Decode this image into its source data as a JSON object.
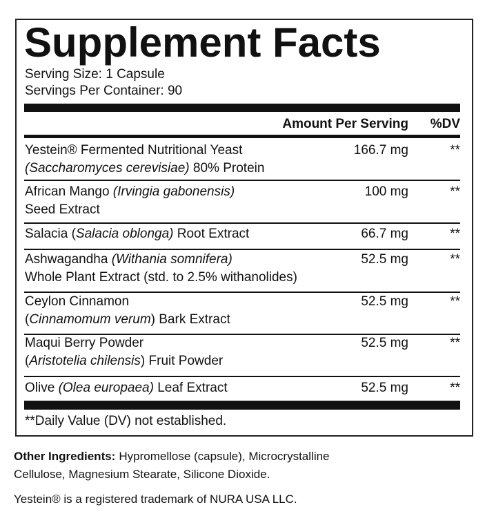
{
  "label": {
    "title": "Supplement Facts",
    "serving_size": "Serving Size: 1 Capsule",
    "servings_per_container": "Servings Per Container: 90",
    "header": {
      "amount": "Amount Per Serving",
      "dv": "%DV"
    },
    "rows": [
      {
        "lines": [
          [
            {
              "text": "Yestein® Fermented Nutritional Yeast",
              "italic": false
            }
          ],
          [
            {
              "text": "(Saccharomyces cerevisiae)",
              "italic": true
            },
            {
              "text": " 80% Protein",
              "italic": false
            }
          ]
        ],
        "amount": "166.7 mg",
        "dv": "**"
      },
      {
        "lines": [
          [
            {
              "text": "African Mango ",
              "italic": false
            },
            {
              "text": "(Irvingia gabonensis)",
              "italic": true
            }
          ],
          [
            {
              "text": "Seed Extract",
              "italic": false
            }
          ]
        ],
        "amount": "100 mg",
        "dv": "**"
      },
      {
        "lines": [
          [
            {
              "text": "Salacia (",
              "italic": false
            },
            {
              "text": "Salacia oblonga)",
              "italic": true
            },
            {
              "text": " Root Extract",
              "italic": false
            }
          ]
        ],
        "amount": "66.7 mg",
        "dv": "**"
      },
      {
        "lines": [
          [
            {
              "text": "Ashwagandha ",
              "italic": false
            },
            {
              "text": "(Withania somnifera)",
              "italic": true
            }
          ],
          [
            {
              "text": "Whole Plant Extract (std. to 2.5% withanolides)",
              "italic": false
            }
          ]
        ],
        "amount": "52.5 mg",
        "dv": "**"
      },
      {
        "lines": [
          [
            {
              "text": "Ceylon Cinnamon",
              "italic": false
            }
          ],
          [
            {
              "text": "(",
              "italic": false
            },
            {
              "text": "Cinnamomum verum",
              "italic": true
            },
            {
              "text": ") Bark Extract",
              "italic": false
            }
          ]
        ],
        "amount": "52.5 mg",
        "dv": "**"
      },
      {
        "lines": [
          [
            {
              "text": "Maqui Berry Powder",
              "italic": false
            }
          ],
          [
            {
              "text": "(",
              "italic": false
            },
            {
              "text": "Aristotelia chilensis",
              "italic": true
            },
            {
              "text": ") Fruit Powder",
              "italic": false
            }
          ]
        ],
        "amount": "52.5 mg",
        "dv": "**"
      },
      {
        "lines": [
          [
            {
              "text": "Olive ",
              "italic": false
            },
            {
              "text": "(Olea europaea)",
              "italic": true
            },
            {
              "text": " Leaf Extract",
              "italic": false
            }
          ]
        ],
        "amount": "52.5 mg",
        "dv": "**"
      }
    ],
    "footnote": "**Daily Value (DV) not established."
  },
  "other_ingredients": {
    "label": "Other Ingredients:",
    "lines": [
      "Hypromellose (capsule), Microcrystalline",
      "Cellulose, Magnesium Stearate, Silicone Dioxide."
    ]
  },
  "trademark": "Yestein® is a registered trademark of NURA USA LLC."
}
